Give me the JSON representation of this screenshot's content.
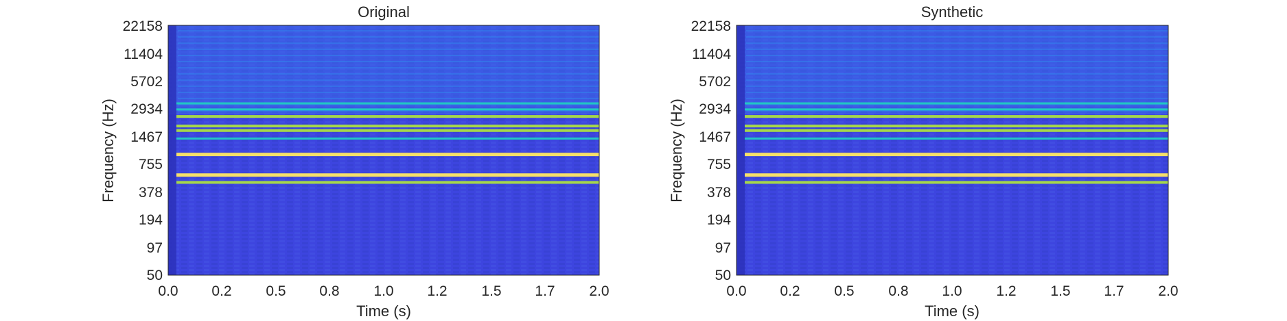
{
  "chart_data": [
    {
      "type": "heatmap",
      "title": "Original",
      "xlabel": "Time (s)",
      "ylabel": "Frequency (Hz)",
      "xlim": [
        0,
        2.0
      ],
      "x_ticks": [
        "0.0",
        "0.2",
        "0.5",
        "0.8",
        "1.0",
        "1.2",
        "1.5",
        "1.7",
        "2.0"
      ],
      "y_scale": "log",
      "ylim": [
        50,
        22158
      ],
      "y_ticks": [
        "50",
        "97",
        "194",
        "378",
        "755",
        "1467",
        "2934",
        "5702",
        "11404",
        "22158"
      ],
      "colormap": "parula",
      "background_level": "low (blue)",
      "harmonics": [
        {
          "freq_hz": 480,
          "level": "high"
        },
        {
          "freq_hz": 575,
          "level": "max"
        },
        {
          "freq_hz": 950,
          "level": "max"
        },
        {
          "freq_hz": 1400,
          "level": "medium"
        },
        {
          "freq_hz": 1700,
          "level": "high"
        },
        {
          "freq_hz": 1900,
          "level": "high"
        },
        {
          "freq_hz": 2400,
          "level": "high"
        },
        {
          "freq_hz": 2850,
          "level": "medium"
        },
        {
          "freq_hz": 3300,
          "level": "medium"
        }
      ]
    },
    {
      "type": "heatmap",
      "title": "Synthetic",
      "xlabel": "Time (s)",
      "ylabel": "Frequency (Hz)",
      "xlim": [
        0,
        2.0
      ],
      "x_ticks": [
        "0.0",
        "0.2",
        "0.5",
        "0.8",
        "1.0",
        "1.2",
        "1.5",
        "1.7",
        "2.0"
      ],
      "y_scale": "log",
      "ylim": [
        50,
        22158
      ],
      "y_ticks": [
        "50",
        "97",
        "194",
        "378",
        "755",
        "1467",
        "2934",
        "5702",
        "11404",
        "22158"
      ],
      "colormap": "parula",
      "background_level": "low (blue)",
      "harmonics": [
        {
          "freq_hz": 480,
          "level": "high"
        },
        {
          "freq_hz": 575,
          "level": "max"
        },
        {
          "freq_hz": 950,
          "level": "max"
        },
        {
          "freq_hz": 1400,
          "level": "medium"
        },
        {
          "freq_hz": 1700,
          "level": "high"
        },
        {
          "freq_hz": 1900,
          "level": "high"
        },
        {
          "freq_hz": 2400,
          "level": "high"
        },
        {
          "freq_hz": 2850,
          "level": "medium"
        },
        {
          "freq_hz": 3300,
          "level": "medium"
        }
      ]
    }
  ],
  "colors": {
    "background": "#3a3fd9",
    "faint_line": "#2f8ff0",
    "medium_line": "#22c6c4",
    "high_line": "#a6d84a",
    "max_line": "#f6e06a",
    "axis": "#262626"
  }
}
